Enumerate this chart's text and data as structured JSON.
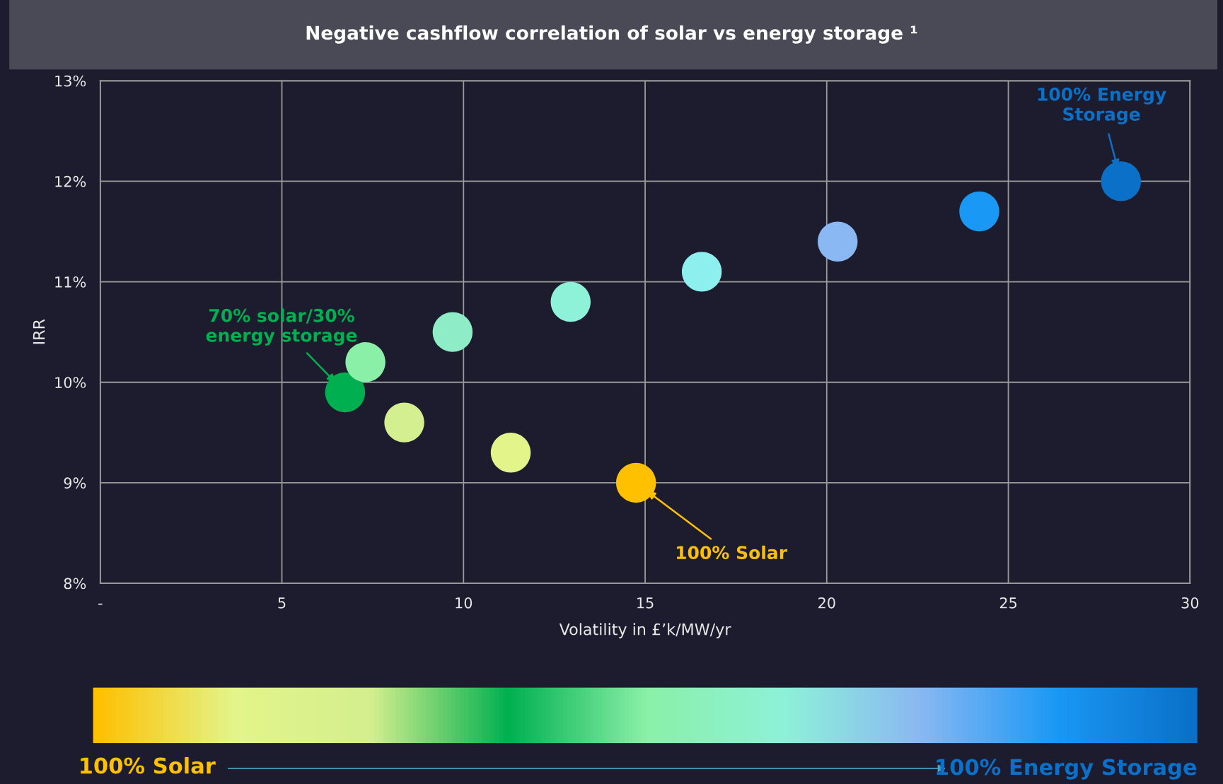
{
  "chart_data": {
    "type": "scatter",
    "title": "Negative cashflow correlation of solar vs energy storage ¹",
    "xlabel": "Volatility in £’k/MW/yr",
    "ylabel": "IRR",
    "x": [
      14.75,
      11.3,
      8.37,
      6.74,
      7.3,
      9.7,
      12.95,
      16.56,
      20.3,
      24.2,
      28.1
    ],
    "values": [
      9.0,
      9.3,
      9.6,
      9.9,
      10.2,
      10.5,
      10.8,
      11.1,
      11.4,
      11.7,
      12.0
    ],
    "colors": [
      "#ffc000",
      "#e3f58a",
      "#d4ef8f",
      "#00b050",
      "#8af0a8",
      "#8eedc6",
      "#8ef2d8",
      "#8ef0ee",
      "#8ab8f2",
      "#1a98f5",
      "#0a70c8"
    ],
    "marker": "circle",
    "xlim": [
      0,
      30
    ],
    "xticks": [
      {
        "value": 0,
        "label": "-"
      },
      5,
      10,
      15,
      20,
      25,
      30
    ],
    "ylim": [
      8,
      13
    ],
    "yticks": [
      {
        "value": 8,
        "label": "8%"
      },
      {
        "value": 9,
        "label": "9%"
      },
      {
        "value": 10,
        "label": "10%"
      },
      {
        "value": 11,
        "label": "11%"
      },
      {
        "value": 12,
        "label": "12%"
      },
      {
        "value": 13,
        "label": "13%"
      }
    ],
    "grid": true,
    "annotations": [
      {
        "text": "70% solar/30%\nenergy storage",
        "x": 6.74,
        "y": 9.9
      },
      "100% Solar",
      "100% Energy\nStorage",
      "100% Solar",
      "100% Energy Storage"
    ]
  }
}
